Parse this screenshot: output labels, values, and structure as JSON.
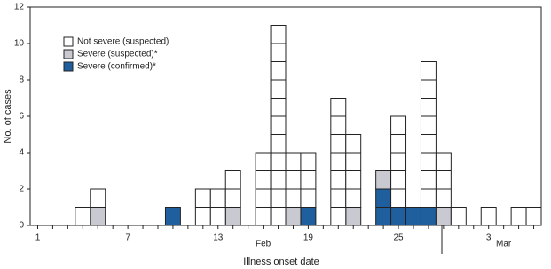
{
  "chart_data": {
    "type": "bar",
    "stacked": true,
    "x_label": "Illness onset date",
    "y_label": "No. of cases",
    "categories": [
      "1",
      null,
      null,
      null,
      null,
      null,
      "7",
      null,
      null,
      null,
      null,
      null,
      "13",
      null,
      null,
      null,
      null,
      null,
      "19",
      null,
      null,
      null,
      null,
      null,
      "25",
      null,
      null,
      null,
      null,
      null,
      "3",
      null,
      null,
      null
    ],
    "annotations": [
      {
        "text": "Feb",
        "at": 15
      },
      {
        "text": "Mar",
        "at": 31
      }
    ],
    "series": [
      {
        "name": "Severe (confirmed)*",
        "color": "#1f5f9e",
        "values": [
          0,
          0,
          0,
          0,
          0,
          0,
          0,
          0,
          0,
          1,
          0,
          0,
          0,
          0,
          0,
          0,
          0,
          0,
          1,
          0,
          0,
          0,
          0,
          2,
          1,
          1,
          1,
          0,
          0,
          0,
          0,
          0,
          0,
          0
        ]
      },
      {
        "name": "Severe (suspected)*",
        "color": "#c9c9d1",
        "values": [
          0,
          0,
          0,
          0,
          1,
          0,
          0,
          0,
          0,
          0,
          0,
          0,
          0,
          1,
          0,
          0,
          0,
          1,
          0,
          0,
          0,
          1,
          0,
          1,
          0,
          0,
          0,
          1,
          0,
          0,
          0,
          0,
          0,
          0
        ]
      },
      {
        "name": "Not severe (suspected)",
        "color": "#ffffff",
        "values": [
          0,
          0,
          0,
          1,
          1,
          0,
          0,
          0,
          0,
          0,
          0,
          2,
          2,
          2,
          0,
          4,
          11,
          3,
          3,
          0,
          7,
          4,
          0,
          0,
          5,
          0,
          8,
          3,
          1,
          0,
          1,
          0,
          1,
          1
        ]
      }
    ],
    "ylim": [
      0,
      12
    ],
    "yticks": [
      0,
      2,
      4,
      6,
      8,
      10,
      12
    ]
  }
}
